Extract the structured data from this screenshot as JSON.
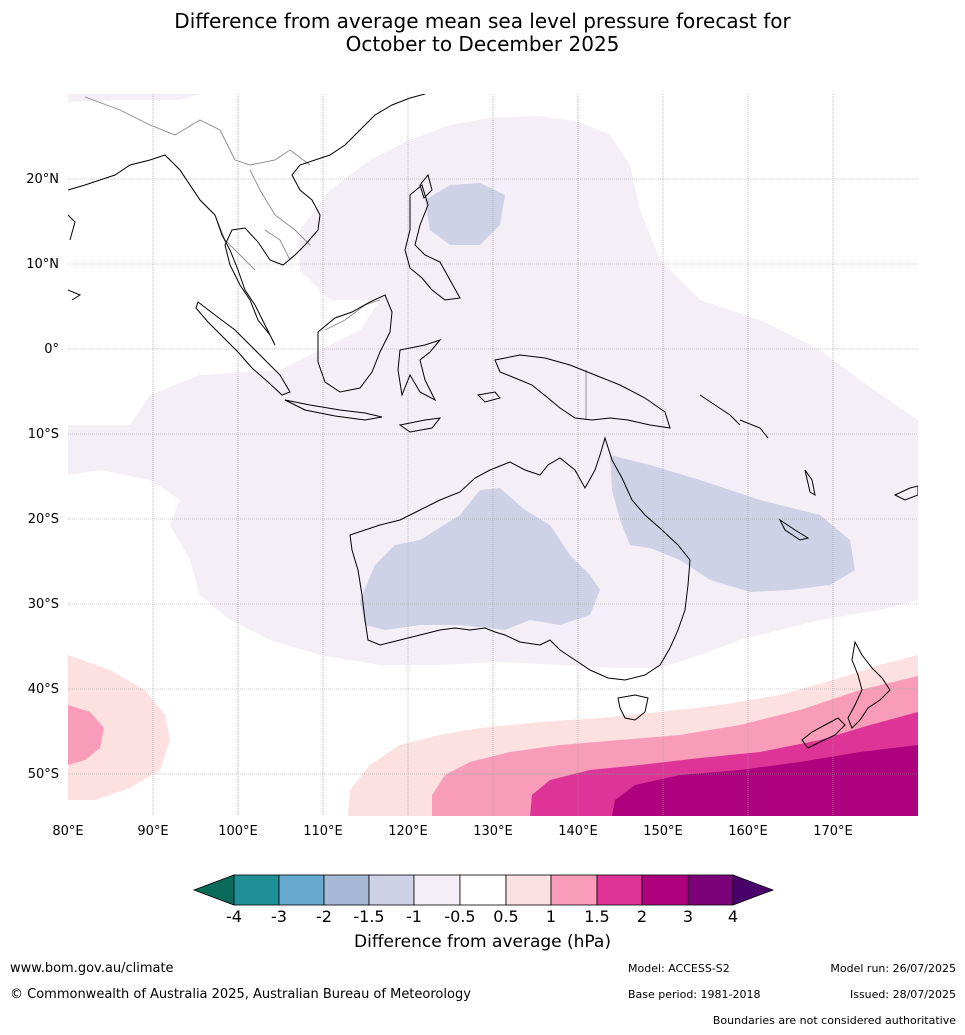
{
  "title": {
    "line1": "Difference from average mean sea level pressure forecast for",
    "line2": "October to December 2025"
  },
  "map": {
    "lon_ticks": [
      "80°E",
      "90°E",
      "100°E",
      "110°E",
      "120°E",
      "130°E",
      "140°E",
      "150°E",
      "160°E",
      "170°E"
    ],
    "lat_ticks": [
      "20°N",
      "10°N",
      "0°",
      "10°S",
      "20°S",
      "30°S",
      "40°S",
      "50°S"
    ],
    "colors": {
      "neg_1_5": "#cfd2e6",
      "neg_0_5": "#f4eef6",
      "pos_0_5": "#fde0e0",
      "pos_1": "#f89cb9",
      "pos_1_5": "#de3497",
      "pos_2": "#ad017e",
      "coast": "#000000",
      "border": "#888888",
      "grid": "#999999"
    }
  },
  "colorbar": {
    "labels": [
      "-4",
      "-3",
      "-2",
      "-1.5",
      "-1",
      "-0.5",
      "0.5",
      "1",
      "1.5",
      "2",
      "3",
      "4"
    ],
    "colors": [
      "#0a6b5a",
      "#1f9097",
      "#67a9cf",
      "#a6b9d6",
      "#cfd2e6",
      "#f4eef6",
      "#ffffff",
      "#fde0e0",
      "#f89cb9",
      "#de3497",
      "#ad017e",
      "#7a0177",
      "#49006a"
    ],
    "title": "Difference from average (hPa)"
  },
  "footer": {
    "website": "www.bom.gov.au/climate",
    "copyright": "© Commonwealth of Australia 2025, Australian Bureau of Meteorology",
    "model": "Model: ACCESS-S2",
    "base_period": "Base period: 1981-2018",
    "model_run": "Model run: 26/07/2025",
    "issued": "Issued: 28/07/2025",
    "disclaimer": "Boundaries are not considered authoritative"
  }
}
